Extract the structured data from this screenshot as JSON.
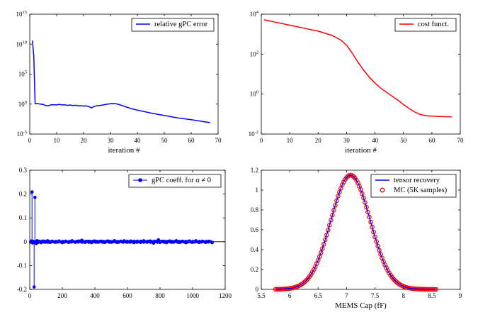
{
  "chart_data": [
    {
      "type": "line",
      "yscale": "log",
      "xlim": [
        0,
        70
      ],
      "ylim_exp": [
        -5,
        15
      ],
      "xticks": [
        "0",
        "10",
        "20",
        "30",
        "40",
        "50",
        "60",
        "70"
      ],
      "yticks": [
        {
          "base": "10",
          "exp": "-5"
        },
        {
          "base": "10",
          "exp": "0"
        },
        {
          "base": "10",
          "exp": "5"
        },
        {
          "base": "10",
          "exp": "10"
        },
        {
          "base": "10",
          "exp": "15"
        }
      ],
      "xlabel": "iteration #",
      "legend_position": "top-right",
      "series": [
        {
          "name": "relative gPC error",
          "color": "#0000ff",
          "x": [
            1,
            1.5,
            2,
            3,
            4,
            5,
            6,
            7,
            8,
            9,
            10,
            11,
            12,
            13,
            14,
            15,
            16,
            17,
            18,
            19,
            20,
            21,
            22,
            23,
            24,
            25,
            26,
            27,
            28,
            29,
            30,
            31,
            32,
            33,
            34,
            35,
            36,
            37,
            38,
            40,
            42,
            45,
            48,
            50,
            55,
            60,
            67
          ],
          "log10_y": [
            10.6,
            8.0,
            0.1,
            0.05,
            0.0,
            -0.05,
            -0.25,
            -0.28,
            -0.1,
            -0.12,
            -0.15,
            -0.05,
            -0.15,
            -0.12,
            -0.22,
            -0.15,
            -0.25,
            -0.2,
            -0.28,
            -0.28,
            -0.32,
            -0.3,
            -0.42,
            -0.62,
            -0.38,
            -0.28,
            -0.22,
            -0.18,
            -0.08,
            0.0,
            0.07,
            0.08,
            0.05,
            -0.05,
            -0.2,
            -0.35,
            -0.5,
            -0.65,
            -0.8,
            -1.0,
            -1.2,
            -1.5,
            -1.75,
            -1.9,
            -2.3,
            -2.6,
            -3.1
          ]
        }
      ]
    },
    {
      "type": "line",
      "yscale": "log",
      "xlim": [
        0,
        70
      ],
      "ylim_exp": [
        -2,
        4
      ],
      "xticks": [
        "0",
        "10",
        "20",
        "30",
        "40",
        "50",
        "60",
        "70"
      ],
      "yticks": [
        {
          "base": "10",
          "exp": "-2"
        },
        {
          "base": "10",
          "exp": "0"
        },
        {
          "base": "10",
          "exp": "2"
        },
        {
          "base": "10",
          "exp": "4"
        }
      ],
      "xlabel": "iteration #",
      "legend_position": "top-right",
      "series": [
        {
          "name": "cost funct.",
          "color": "#ff0000",
          "x": [
            1,
            5,
            10,
            15,
            20,
            25,
            28,
            30,
            32,
            34,
            36,
            38,
            40,
            42,
            45,
            48,
            50,
            52,
            54,
            56,
            58,
            60,
            63,
            67
          ],
          "log10_y": [
            3.72,
            3.6,
            3.45,
            3.3,
            3.15,
            2.93,
            2.7,
            2.45,
            2.05,
            1.6,
            1.2,
            0.85,
            0.55,
            0.3,
            0.0,
            -0.3,
            -0.52,
            -0.72,
            -0.9,
            -1.02,
            -1.08,
            -1.1,
            -1.12,
            -1.14
          ]
        }
      ]
    },
    {
      "type": "stem",
      "xlim": [
        0,
        1200
      ],
      "ylim": [
        -0.2,
        0.3
      ],
      "xticks": [
        "0",
        "200",
        "400",
        "600",
        "800",
        "1000",
        "1200"
      ],
      "yticks": [
        "-0.2",
        "-0.1",
        "0",
        "0.1",
        "0.2",
        "0.3"
      ],
      "legend_position": "top-right",
      "series": [
        {
          "name": "gPC coeff. for α ≠ 0",
          "color": "#0000ff",
          "x": [
            5,
            10,
            14,
            18,
            22,
            27,
            32,
            36,
            40,
            45,
            52,
            60,
            70,
            80,
            95,
            110,
            125,
            140,
            160,
            180,
            200,
            220,
            240,
            260,
            280,
            300,
            320,
            340,
            360,
            380,
            400,
            420,
            440,
            460,
            480,
            500,
            520,
            540,
            560,
            580,
            600,
            620,
            640,
            660,
            680,
            700,
            720,
            740,
            760,
            780,
            790,
            800,
            820,
            840,
            860,
            880,
            900,
            920,
            940,
            960,
            980,
            1000,
            1020,
            1040,
            1060,
            1080,
            1100,
            1120
          ],
          "y": [
            -0.002,
            0.003,
            0.209,
            -0.005,
            0.002,
            -0.19,
            0.186,
            -0.004,
            -0.008,
            0.004,
            -0.003,
            0.002,
            -0.004,
            0.003,
            -0.002,
            0.004,
            -0.003,
            0.002,
            -0.002,
            0.003,
            -0.004,
            0.002,
            -0.003,
            0.004,
            -0.002,
            0.003,
            0.006,
            -0.003,
            0.002,
            -0.004,
            0.003,
            -0.002,
            0.002,
            -0.003,
            0.003,
            -0.002,
            0.004,
            -0.003,
            0.002,
            0.004,
            -0.002,
            0.003,
            -0.004,
            0.002,
            -0.003,
            0.004,
            -0.002,
            0.003,
            -0.006,
            0.002,
            0.008,
            -0.003,
            0.002,
            -0.004,
            0.003,
            -0.002,
            0.004,
            -0.003,
            0.002,
            -0.004,
            0.003,
            -0.002,
            0.004,
            -0.003,
            0.002,
            -0.003,
            0.002,
            -0.004
          ]
        }
      ]
    },
    {
      "type": "line",
      "xlim": [
        5.5,
        9
      ],
      "ylim": [
        0,
        1.2
      ],
      "xticks": [
        "5.5",
        "6",
        "6.5",
        "7",
        "7.5",
        "8",
        "8.5",
        "9"
      ],
      "yticks": [
        "0",
        "0.2",
        "0.4",
        "0.6",
        "0.8",
        "1",
        "1.2"
      ],
      "xlabel": "MEMS Cap (fF)",
      "legend_position": "top-right",
      "mean": 7.07,
      "peak": 1.15,
      "sigma": 0.345,
      "x_range": [
        5.75,
        8.58
      ],
      "series": [
        {
          "name": "tensor recovery",
          "color": "#0000ff"
        },
        {
          "name": "MC (5K samples)",
          "color": "#ff0000"
        }
      ]
    }
  ]
}
